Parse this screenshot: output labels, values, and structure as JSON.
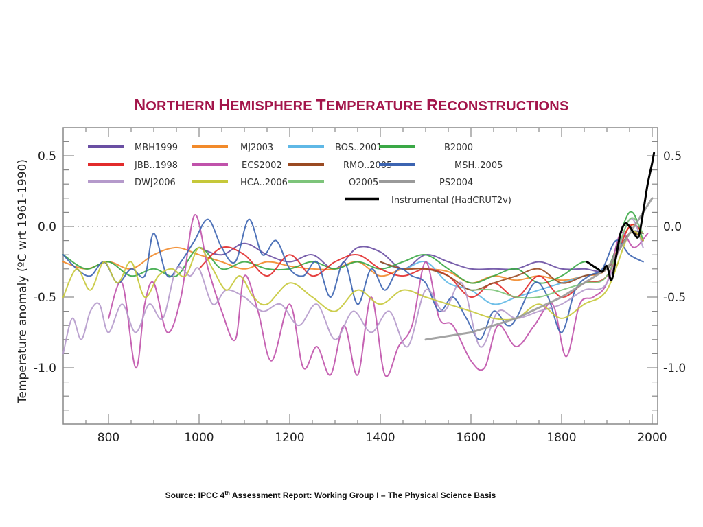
{
  "title": {
    "words": [
      "Northern",
      "Hemisphere",
      "Temperature",
      "Reconstructions"
    ]
  },
  "source": {
    "prefix": "Source: IPCC 4",
    "sup": "th",
    "suffix": " Assessment Report: Working Group I – The Physical Science Basis"
  },
  "chart_data": {
    "type": "line",
    "title": "Northern Hemisphere Temperature Reconstructions",
    "xlabel": "",
    "ylabel": "Temperature anomaly  (ºC wrt 1961-1990)",
    "xlim": [
      700,
      2012
    ],
    "ylim": [
      -1.4,
      0.7
    ],
    "x_ticks": [
      800,
      1000,
      1200,
      1400,
      1600,
      1800,
      2000
    ],
    "x_tick_labels": [
      "800",
      "1000",
      "1200",
      "1400",
      "1600",
      "1800",
      "2000"
    ],
    "y_ticks": [
      0.5,
      0.0,
      -0.5,
      -1.0
    ],
    "y_tick_labels": [
      "0.5",
      "0.0",
      "-0.5",
      "-1.0"
    ],
    "reference_line": {
      "y": 0.0,
      "style": "dotted"
    },
    "grid": false,
    "legend_position": "top-left (inside plot, 4 columns)",
    "series": [
      {
        "name": "MBH1999",
        "color": "#6a4fa3",
        "x": [
          1000,
          1050,
          1100,
          1150,
          1200,
          1250,
          1300,
          1350,
          1400,
          1450,
          1500,
          1550,
          1600,
          1650,
          1700,
          1750,
          1800,
          1850,
          1900,
          1950,
          1980
        ],
        "values": [
          -0.15,
          -0.2,
          -0.12,
          -0.2,
          -0.25,
          -0.2,
          -0.3,
          -0.15,
          -0.18,
          -0.3,
          -0.2,
          -0.25,
          -0.3,
          -0.3,
          -0.3,
          -0.25,
          -0.3,
          -0.3,
          -0.3,
          -0.05,
          -0.05
        ]
      },
      {
        "name": "MJ2003",
        "color": "#f28a2a",
        "x": [
          700,
          750,
          800,
          850,
          900,
          950,
          1000,
          1050,
          1100,
          1150,
          1200,
          1250,
          1300,
          1350,
          1400,
          1450,
          1500,
          1550,
          1600,
          1650,
          1700,
          1750,
          1800,
          1850,
          1900,
          1950,
          1980
        ],
        "values": [
          -0.25,
          -0.3,
          -0.25,
          -0.3,
          -0.2,
          -0.15,
          -0.2,
          -0.25,
          -0.3,
          -0.25,
          -0.28,
          -0.3,
          -0.3,
          -0.25,
          -0.35,
          -0.3,
          -0.3,
          -0.32,
          -0.4,
          -0.35,
          -0.38,
          -0.35,
          -0.38,
          -0.35,
          -0.3,
          0.0,
          -0.05
        ]
      },
      {
        "name": "BOS..2001",
        "color": "#5fb8e6",
        "x": [
          1400,
          1450,
          1500,
          1550,
          1600,
          1650,
          1700,
          1750,
          1800,
          1850,
          1900,
          1950,
          1980
        ],
        "values": [
          -0.25,
          -0.3,
          -0.25,
          -0.4,
          -0.45,
          -0.55,
          -0.5,
          -0.45,
          -0.4,
          -0.35,
          -0.3,
          -0.05,
          -0.1
        ]
      },
      {
        "name": "B2000",
        "color": "#3aa846",
        "x": [
          700,
          750,
          800,
          850,
          900,
          950,
          1000,
          1050,
          1100,
          1150,
          1200,
          1250,
          1300,
          1350,
          1400,
          1450,
          1500,
          1550,
          1600,
          1650,
          1700,
          1750,
          1800,
          1850,
          1900,
          1950,
          1980
        ],
        "values": [
          -0.2,
          -0.3,
          -0.25,
          -0.35,
          -0.3,
          -0.35,
          -0.15,
          -0.3,
          -0.25,
          -0.3,
          -0.3,
          -0.25,
          -0.3,
          -0.25,
          -0.3,
          -0.25,
          -0.2,
          -0.3,
          -0.4,
          -0.35,
          -0.3,
          -0.4,
          -0.35,
          -0.25,
          -0.3,
          0.1,
          -0.1
        ]
      },
      {
        "name": "JBB..1998",
        "color": "#e22b2b",
        "x": [
          1000,
          1050,
          1100,
          1150,
          1200,
          1250,
          1300,
          1350,
          1400,
          1450,
          1500,
          1550,
          1600,
          1650,
          1700,
          1750,
          1800,
          1850,
          1900,
          1950,
          1980
        ],
        "values": [
          -0.3,
          -0.15,
          -0.2,
          -0.35,
          -0.2,
          -0.35,
          -0.25,
          -0.2,
          -0.3,
          -0.35,
          -0.3,
          -0.35,
          -0.5,
          -0.4,
          -0.5,
          -0.35,
          -0.5,
          -0.4,
          -0.35,
          0.0,
          -0.05
        ]
      },
      {
        "name": "ECS2002",
        "color": "#c052ab",
        "x": [
          800,
          830,
          860,
          880,
          900,
          930,
          960,
          990,
          1020,
          1050,
          1080,
          1100,
          1130,
          1160,
          1200,
          1230,
          1260,
          1290,
          1320,
          1350,
          1380,
          1410,
          1440,
          1470,
          1500,
          1530,
          1560,
          1600,
          1630,
          1660,
          1700,
          1740,
          1780,
          1810,
          1840,
          1870,
          1900,
          1930,
          1960,
          1990
        ],
        "values": [
          -0.65,
          -0.4,
          -1.0,
          -0.55,
          -0.4,
          -0.75,
          -0.5,
          0.08,
          -0.3,
          -0.6,
          -0.8,
          -0.35,
          -0.6,
          -0.95,
          -0.55,
          -1.0,
          -0.85,
          -1.05,
          -0.7,
          -1.05,
          -0.5,
          -1.05,
          -0.85,
          -0.7,
          -0.25,
          -0.65,
          -0.7,
          -0.95,
          -1.0,
          -0.7,
          -0.85,
          -0.7,
          -0.55,
          -0.92,
          -0.55,
          -0.5,
          -0.4,
          -0.05,
          -0.15,
          -0.05
        ]
      },
      {
        "name": "RMO..2005",
        "color": "#9a4a22",
        "x": [
          1400,
          1450,
          1500,
          1550,
          1600,
          1650,
          1700,
          1750,
          1800,
          1850,
          1900,
          1950,
          1980
        ],
        "values": [
          -0.25,
          -0.3,
          -0.3,
          -0.35,
          -0.45,
          -0.4,
          -0.35,
          -0.3,
          -0.4,
          -0.35,
          -0.3,
          -0.05,
          -0.1
        ]
      },
      {
        "name": "MSH..2005",
        "color": "#3c64b1",
        "x": [
          700,
          730,
          760,
          790,
          820,
          850,
          880,
          900,
          930,
          960,
          990,
          1020,
          1050,
          1080,
          1110,
          1140,
          1170,
          1200,
          1230,
          1260,
          1290,
          1320,
          1350,
          1380,
          1410,
          1440,
          1470,
          1500,
          1530,
          1560,
          1590,
          1620,
          1650,
          1680,
          1700,
          1740,
          1770,
          1800,
          1830,
          1860,
          1890,
          1920,
          1950,
          1980
        ],
        "values": [
          -0.2,
          -0.3,
          -0.35,
          -0.25,
          -0.4,
          -0.3,
          -0.35,
          -0.05,
          -0.35,
          -0.25,
          -0.1,
          0.05,
          -0.15,
          -0.25,
          0.05,
          -0.2,
          -0.1,
          -0.3,
          -0.35,
          -0.25,
          -0.5,
          -0.25,
          -0.55,
          -0.3,
          -0.45,
          -0.3,
          -0.35,
          -0.4,
          -0.6,
          -0.5,
          -0.65,
          -0.8,
          -0.6,
          -0.7,
          -0.65,
          -0.4,
          -0.5,
          -0.75,
          -0.45,
          -0.35,
          -0.3,
          -0.1,
          -0.2,
          -0.25
        ]
      },
      {
        "name": "DWJ2006",
        "color": "#b59acb",
        "x": [
          700,
          720,
          740,
          760,
          780,
          800,
          830,
          860,
          890,
          920,
          950,
          980,
          1000,
          1030,
          1060,
          1100,
          1140,
          1180,
          1220,
          1260,
          1300,
          1340,
          1380,
          1420,
          1460,
          1500,
          1540,
          1580,
          1620,
          1660,
          1700,
          1750,
          1800,
          1850,
          1900,
          1950,
          1980
        ],
        "values": [
          -0.9,
          -0.65,
          -0.8,
          -0.6,
          -0.55,
          -0.75,
          -0.55,
          -0.75,
          -0.55,
          -0.65,
          -0.3,
          -0.35,
          -0.3,
          -0.55,
          -0.45,
          -0.5,
          -0.6,
          -0.55,
          -0.7,
          -0.55,
          -0.8,
          -0.6,
          -0.75,
          -0.6,
          -0.85,
          -0.45,
          -0.6,
          -0.4,
          -0.85,
          -0.6,
          -0.65,
          -0.6,
          -0.55,
          -0.45,
          -0.4,
          0.05,
          -0.15
        ]
      },
      {
        "name": "HCA..2006",
        "color": "#c6c83a",
        "x": [
          700,
          730,
          760,
          790,
          820,
          850,
          880,
          910,
          940,
          970,
          1000,
          1030,
          1060,
          1090,
          1120,
          1150,
          1200,
          1250,
          1300,
          1350,
          1400,
          1450,
          1500,
          1550,
          1600,
          1650,
          1700,
          1750,
          1800,
          1850,
          1900,
          1950,
          1980
        ],
        "values": [
          -0.5,
          -0.3,
          -0.45,
          -0.25,
          -0.4,
          -0.25,
          -0.5,
          -0.35,
          -0.3,
          -0.35,
          -0.15,
          -0.3,
          -0.45,
          -0.35,
          -0.5,
          -0.55,
          -0.4,
          -0.5,
          -0.6,
          -0.45,
          -0.55,
          -0.45,
          -0.5,
          -0.55,
          -0.6,
          -0.65,
          -0.65,
          -0.55,
          -0.65,
          -0.55,
          -0.45,
          -0.05,
          -0.1
        ]
      },
      {
        "name": "O2005",
        "color": "#7dc47a",
        "x": [
          1600,
          1650,
          1700,
          1750,
          1800,
          1850,
          1900,
          1950,
          1980
        ],
        "values": [
          -0.45,
          -0.45,
          -0.5,
          -0.5,
          -0.45,
          -0.4,
          -0.35,
          0.05,
          -0.05
        ]
      },
      {
        "name": "PS2004",
        "color": "#9a9a9a",
        "x": [
          1500,
          1600,
          1700,
          1800,
          1900,
          2000
        ],
        "values": [
          -0.8,
          -0.75,
          -0.65,
          -0.5,
          -0.3,
          0.2
        ]
      },
      {
        "name": "Instrumental (HadCRUT2v)",
        "color": "#000000",
        "x": [
          1856,
          1870,
          1880,
          1890,
          1900,
          1910,
          1920,
          1930,
          1940,
          1950,
          1960,
          1970,
          1980,
          1990,
          2000,
          2004
        ],
        "values": [
          -0.25,
          -0.28,
          -0.3,
          -0.32,
          -0.28,
          -0.38,
          -0.22,
          -0.05,
          0.02,
          0.0,
          -0.05,
          -0.07,
          0.1,
          0.3,
          0.45,
          0.52
        ]
      }
    ]
  }
}
